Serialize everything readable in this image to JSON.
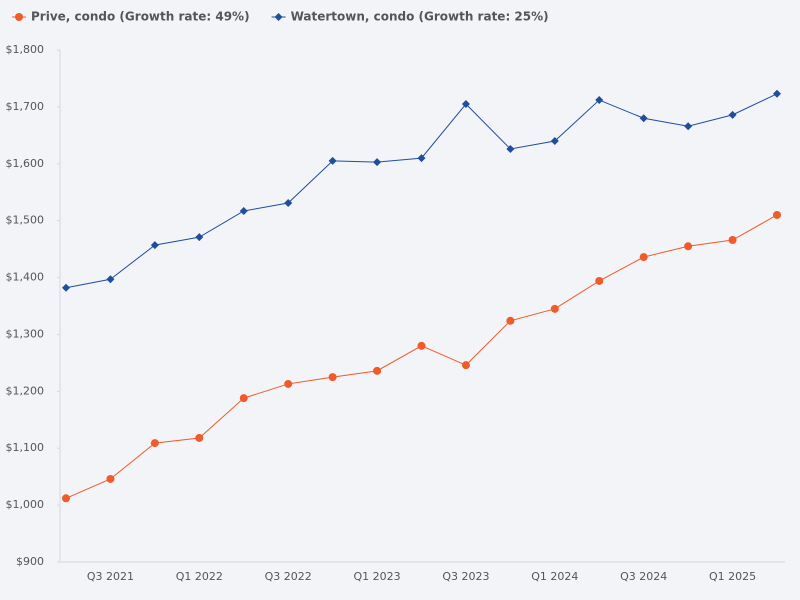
{
  "chart_data": {
    "type": "line",
    "categories": [
      null,
      "Q3 2021",
      null,
      "Q1 2022",
      null,
      "Q3 2022",
      null,
      "Q1 2023",
      null,
      "Q3 2023",
      null,
      "Q1 2024",
      null,
      "Q3 2024",
      null,
      "Q1 2025",
      null
    ],
    "series": [
      {
        "name": "Prive, condo (Growth rate: 49%)",
        "color": "#f15a29",
        "marker": "circle",
        "values": [
          1012,
          1046,
          1109,
          1118,
          1188,
          1213,
          1225,
          1236,
          1280,
          1246,
          1324,
          1345,
          1394,
          1436,
          1455,
          1466,
          1510
        ]
      },
      {
        "name": "Watertown, condo (Growth rate: 25%)",
        "color": "#1f4e9c",
        "marker": "diamond",
        "values": [
          1382,
          1397,
          1457,
          1471,
          1517,
          1531,
          1605,
          1603,
          1610,
          1705,
          1626,
          1640,
          1712,
          1680,
          1666,
          1686,
          1723
        ]
      }
    ],
    "ylim": [
      900,
      1800
    ],
    "yticks": [
      {
        "value": 900,
        "label": "$900"
      },
      {
        "value": 1000,
        "label": "$1,000"
      },
      {
        "value": 1100,
        "label": "$1,100"
      },
      {
        "value": 1200,
        "label": "$1,200"
      },
      {
        "value": 1300,
        "label": "$1,300"
      },
      {
        "value": 1400,
        "label": "$1,400"
      },
      {
        "value": 1500,
        "label": "$1,500"
      },
      {
        "value": 1600,
        "label": "$1,600"
      },
      {
        "value": 1700,
        "label": "$1,700"
      },
      {
        "value": 1800,
        "label": "$1,800"
      }
    ],
    "grid": false,
    "legend": "top"
  }
}
